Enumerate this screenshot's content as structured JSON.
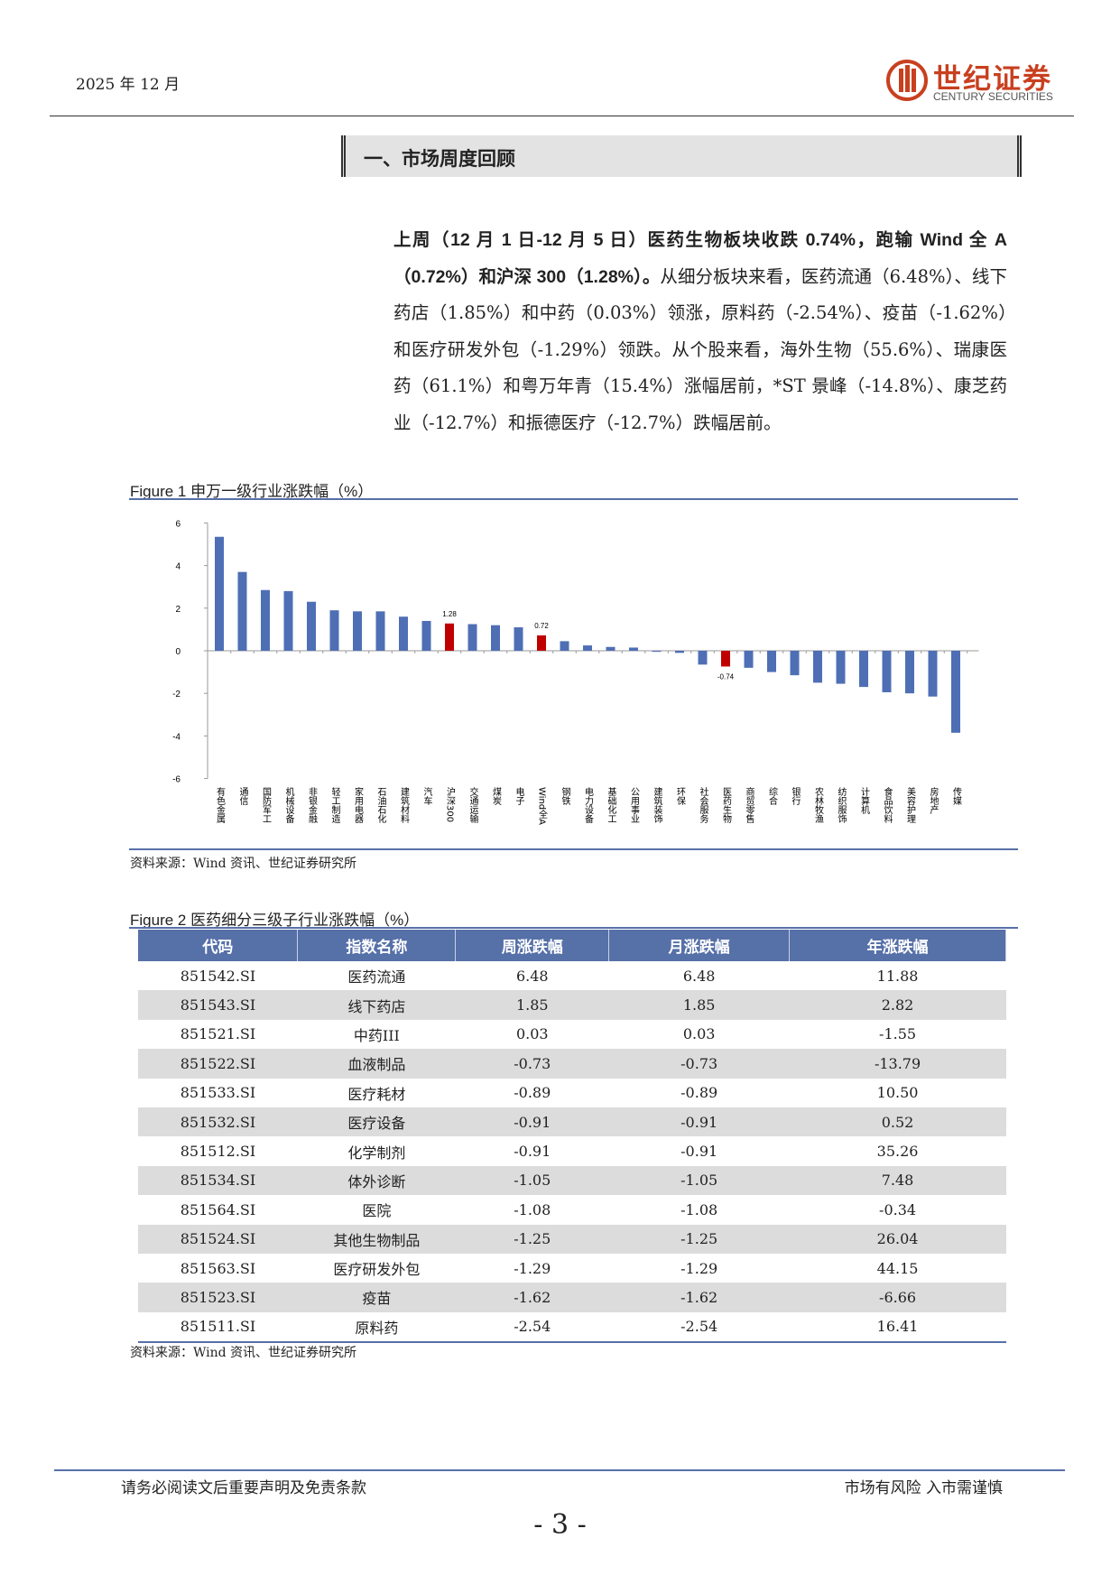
{
  "header": {
    "date": "2025 年 12 月",
    "logo_cn": "世纪证券",
    "logo_en": "CENTURY SECURITIES"
  },
  "section_title": "一、市场周度回顾",
  "paragraph": {
    "bold": "上周（12 月 1 日-12 月 5 日）医药生物板块收跌 0.74%，跑输 Wind 全 A（0.72%）和沪深 300（1.28%）。",
    "text": "从细分板块来看，医药流通（6.48%）、线下药店（1.85%）和中药（0.03%）领涨，原料药（-2.54%）、疫苗（-1.62%）和医疗研发外包（-1.29%）领跌。从个股来看，海外生物（55.6%）、瑞康医药（61.1%）和粤万年青（15.4%）涨幅居前，*ST 景峰（-14.8%）、康芝药业（-12.7%）和振德医疗（-12.7%）跌幅居前。"
  },
  "figure1": {
    "caption": "Figure 1  申万一级行业涨跌幅（%）",
    "source": "资料来源：Wind 资讯、世纪证券研究所"
  },
  "chart_data": {
    "type": "bar",
    "categories": [
      "有色金属",
      "通信",
      "国防军工",
      "机械设备",
      "非银金融",
      "轻工制造",
      "家用电器",
      "石油石化",
      "建筑材料",
      "汽车",
      "沪深300",
      "交通运输",
      "煤炭",
      "电子",
      "Wind全A",
      "钢铁",
      "电力设备",
      "基础化工",
      "公用事业",
      "建筑装饰",
      "环保",
      "社会服务",
      "医药生物",
      "商贸零售",
      "综合",
      "银行",
      "农林牧渔",
      "纺织服饰",
      "计算机",
      "食品饮料",
      "美容护理",
      "房地产",
      "传媒"
    ],
    "values": [
      5.35,
      3.7,
      2.85,
      2.8,
      2.3,
      1.9,
      1.85,
      1.85,
      1.6,
      1.4,
      1.28,
      1.25,
      1.2,
      1.1,
      0.72,
      0.45,
      0.25,
      0.18,
      0.15,
      -0.05,
      -0.1,
      -0.65,
      -0.74,
      -0.8,
      -1.0,
      -1.15,
      -1.5,
      -1.55,
      -1.7,
      -1.95,
      -2.0,
      -2.15,
      -3.85
    ],
    "color": "#4f6fb5",
    "colors": [
      "#4f6fb5",
      "#4f6fb5",
      "#4f6fb5",
      "#4f6fb5",
      "#4f6fb5",
      "#4f6fb5",
      "#4f6fb5",
      "#4f6fb5",
      "#4f6fb5",
      "#4f6fb5",
      "#c00000",
      "#4f6fb5",
      "#4f6fb5",
      "#4f6fb5",
      "#c00000",
      "#4f6fb5",
      "#4f6fb5",
      "#4f6fb5",
      "#4f6fb5",
      "#4f6fb5",
      "#4f6fb5",
      "#4f6fb5",
      "#c00000",
      "#4f6fb5",
      "#4f6fb5",
      "#4f6fb5",
      "#4f6fb5",
      "#4f6fb5",
      "#4f6fb5",
      "#4f6fb5",
      "#4f6fb5",
      "#4f6fb5",
      "#4f6fb5"
    ],
    "ylim": [
      -6,
      6
    ],
    "yticks": [
      -6,
      -4,
      -2,
      0,
      2,
      4,
      6
    ],
    "grid": false
  },
  "figure2": {
    "caption": "Figure 2  医药细分三级子行业涨跌幅（%）",
    "table": {
      "header": [
        "代码",
        "指数名称",
        "周涨跌幅",
        "月涨跌幅",
        "年涨跌幅"
      ],
      "rows": [
        [
          "851542.SI",
          "医药流通",
          "6.48",
          "6.48",
          "11.88"
        ],
        [
          "851543.SI",
          "线下药店",
          "1.85",
          "1.85",
          "2.82"
        ],
        [
          "851521.SI",
          "中药III",
          "0.03",
          "0.03",
          "-1.55"
        ],
        [
          "851522.SI",
          "血液制品",
          "-0.73",
          "-0.73",
          "-13.79"
        ],
        [
          "851533.SI",
          "医疗耗材",
          "-0.89",
          "-0.89",
          "10.50"
        ],
        [
          "851532.SI",
          "医疗设备",
          "-0.91",
          "-0.91",
          "0.52"
        ],
        [
          "851512.SI",
          "化学制剂",
          "-0.91",
          "-0.91",
          "35.26"
        ],
        [
          "851534.SI",
          "体外诊断",
          "-1.05",
          "-1.05",
          "7.48"
        ],
        [
          "851564.SI",
          "医院",
          "-1.08",
          "-1.08",
          "-0.34"
        ],
        [
          "851524.SI",
          "其他生物制品",
          "-1.25",
          "-1.25",
          "26.04"
        ],
        [
          "851563.SI",
          "医疗研发外包",
          "-1.29",
          "-1.29",
          "44.15"
        ],
        [
          "851523.SI",
          "疫苗",
          "-1.62",
          "-1.62",
          "-6.66"
        ],
        [
          "851511.SI",
          "原料药",
          "-2.54",
          "-2.54",
          "16.41"
        ]
      ]
    },
    "source": "资料来源：Wind 资讯、世纪证券研究所"
  },
  "footer": {
    "left": "请务必阅读文后重要声明及免责条款",
    "right": "市场有风险 入市需谨慎",
    "page": "- 3 -"
  }
}
